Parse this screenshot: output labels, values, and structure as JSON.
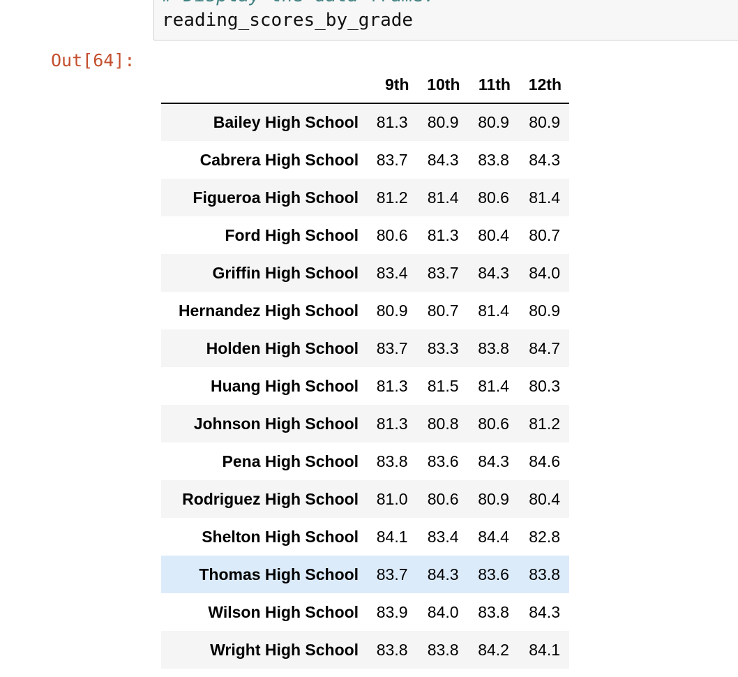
{
  "input_cell": {
    "comment": "# Display the data frame.",
    "code": "reading_scores_by_grade"
  },
  "output": {
    "prompt": "Out[64]:"
  },
  "table": {
    "columns": [
      "9th",
      "10th",
      "11th",
      "12th"
    ],
    "rows": [
      {
        "school": "Bailey High School",
        "values": [
          "81.3",
          "80.9",
          "80.9",
          "80.9"
        ]
      },
      {
        "school": "Cabrera High School",
        "values": [
          "83.7",
          "84.3",
          "83.8",
          "84.3"
        ]
      },
      {
        "school": "Figueroa High School",
        "values": [
          "81.2",
          "81.4",
          "80.6",
          "81.4"
        ]
      },
      {
        "school": "Ford High School",
        "values": [
          "80.6",
          "81.3",
          "80.4",
          "80.7"
        ]
      },
      {
        "school": "Griffin High School",
        "values": [
          "83.4",
          "83.7",
          "84.3",
          "84.0"
        ]
      },
      {
        "school": "Hernandez High School",
        "values": [
          "80.9",
          "80.7",
          "81.4",
          "80.9"
        ]
      },
      {
        "school": "Holden High School",
        "values": [
          "83.7",
          "83.3",
          "83.8",
          "84.7"
        ]
      },
      {
        "school": "Huang High School",
        "values": [
          "81.3",
          "81.5",
          "81.4",
          "80.3"
        ]
      },
      {
        "school": "Johnson High School",
        "values": [
          "81.3",
          "80.8",
          "80.6",
          "81.2"
        ]
      },
      {
        "school": "Pena High School",
        "values": [
          "83.8",
          "83.6",
          "84.3",
          "84.6"
        ]
      },
      {
        "school": "Rodriguez High School",
        "values": [
          "81.0",
          "80.6",
          "80.9",
          "80.4"
        ]
      },
      {
        "school": "Shelton High School",
        "values": [
          "84.1",
          "83.4",
          "84.4",
          "82.8"
        ]
      },
      {
        "school": "Thomas High School",
        "values": [
          "83.7",
          "84.3",
          "83.6",
          "83.8"
        ]
      },
      {
        "school": "Wilson High School",
        "values": [
          "83.9",
          "84.0",
          "83.8",
          "84.3"
        ]
      },
      {
        "school": "Wright High School",
        "values": [
          "83.8",
          "83.8",
          "84.2",
          "84.1"
        ]
      }
    ],
    "hovered_row": "Thomas High School"
  },
  "colors": {
    "prompt_out": "#c4502f",
    "comment": "#408080",
    "row_stripe": "#f5f5f5",
    "row_hover": "#dcebfa"
  }
}
